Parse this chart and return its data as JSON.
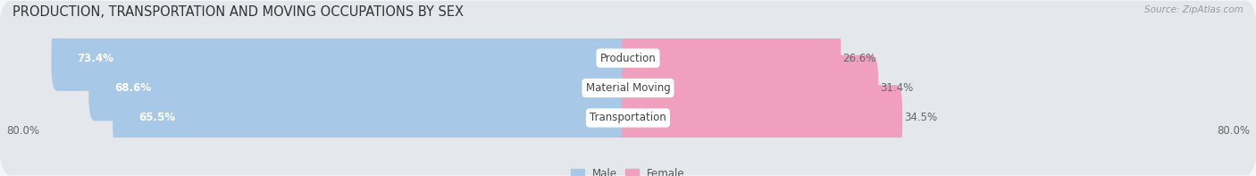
{
  "title": "PRODUCTION, TRANSPORTATION AND MOVING OCCUPATIONS BY SEX",
  "source": "Source: ZipAtlas.com",
  "categories": [
    "Production",
    "Material Moving",
    "Transportation"
  ],
  "male_values": [
    73.4,
    68.6,
    65.5
  ],
  "female_values": [
    26.6,
    31.4,
    34.5
  ],
  "axis_min": -80.0,
  "axis_max": 80.0,
  "male_color": "#a8c8e8",
  "female_color": "#f0a0bc",
  "male_label": "Male",
  "female_label": "Female",
  "background_color": "#f4f6f8",
  "row_bg_color": "#e4e8ed",
  "title_fontsize": 10.5,
  "label_fontsize": 8.5,
  "tick_fontsize": 8.5,
  "axis_label_left": "80.0%",
  "axis_label_right": "80.0%"
}
